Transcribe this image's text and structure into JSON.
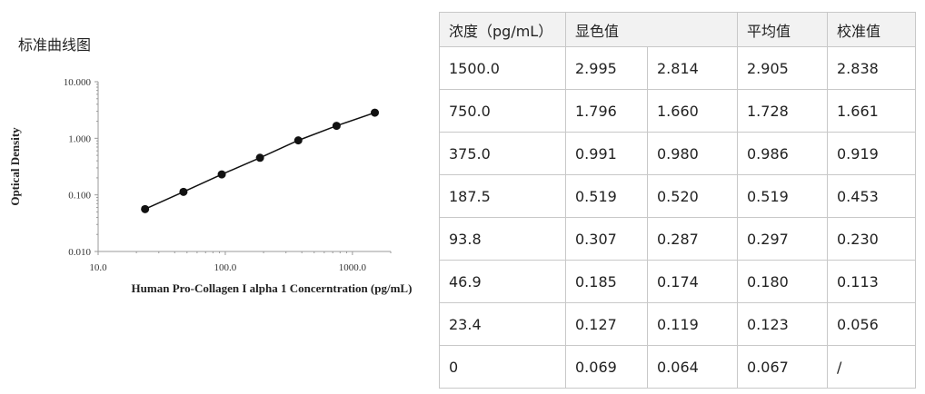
{
  "chart_title": "标准曲线图",
  "chart_data": {
    "type": "scatter",
    "xscale": "log",
    "yscale": "log",
    "xlim": [
      10,
      2000
    ],
    "ylim": [
      0.01,
      10
    ],
    "xticks": [
      "10.0",
      "100.0",
      "1000.0"
    ],
    "yticks": [
      "10.000",
      "1.000",
      "0.100",
      "0.010"
    ],
    "xlabel": "Human Pro-Collagen I alpha 1 Concerntration (pg/mL)",
    "ylabel": "Optical Density",
    "grid": false,
    "series": [
      {
        "x": [
          23.4,
          46.9,
          93.8,
          187.5,
          375.0,
          750.0,
          1500.0
        ],
        "y": [
          0.056,
          0.113,
          0.23,
          0.453,
          0.919,
          1.661,
          2.838
        ]
      }
    ]
  },
  "table": {
    "headers": [
      "浓度（pg/mL）",
      "显色值",
      "平均值",
      "校准值"
    ],
    "rows": [
      [
        "1500.0",
        "2.995",
        "2.814",
        "2.905",
        "2.838"
      ],
      [
        "750.0",
        "1.796",
        "1.660",
        "1.728",
        "1.661"
      ],
      [
        "375.0",
        "0.991",
        "0.980",
        "0.986",
        "0.919"
      ],
      [
        "187.5",
        "0.519",
        "0.520",
        "0.519",
        "0.453"
      ],
      [
        "93.8",
        "0.307",
        "0.287",
        "0.297",
        "0.230"
      ],
      [
        "46.9",
        "0.185",
        "0.174",
        "0.180",
        "0.113"
      ],
      [
        "23.4",
        "0.127",
        "0.119",
        "0.123",
        "0.056"
      ],
      [
        "0",
        "0.069",
        "0.064",
        "0.067",
        "/"
      ]
    ]
  }
}
